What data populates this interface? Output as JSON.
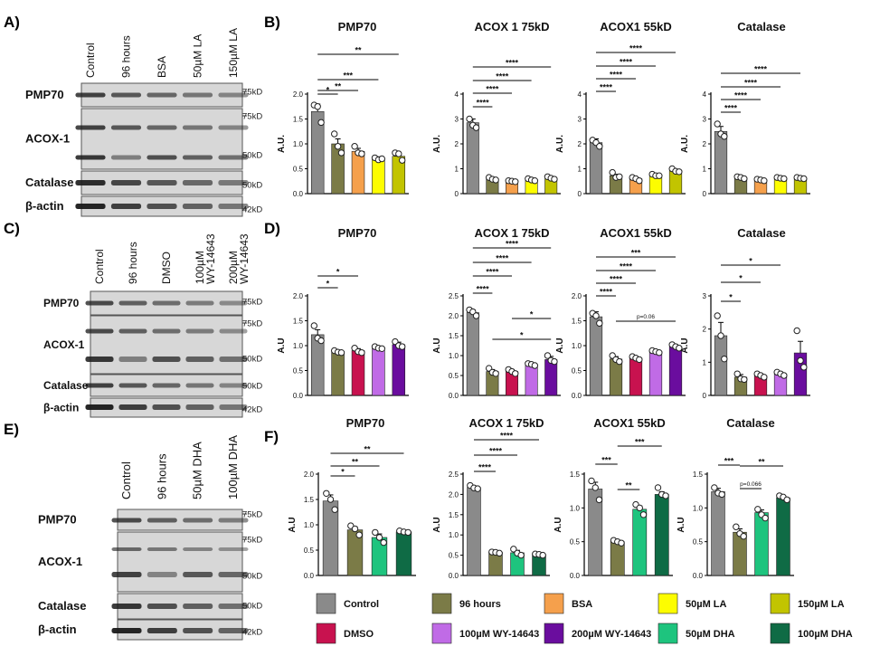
{
  "panel_letters": {
    "a": "A)",
    "b": "B)",
    "c": "C)",
    "d": "D)",
    "e": "E)",
    "f": "F)"
  },
  "colors": {
    "Control": "#8a8a8a",
    "96 hours": "#7b7b47",
    "BSA": "#f5a04c",
    "50µM LA": "#fdfd00",
    "150µM LA": "#c2c400",
    "DMSO": "#c8124f",
    "100µM WY-14643": "#c06be6",
    "200µM WY-14643": "#6a0d9e",
    "50µM DHA": "#1ec47e",
    "100µM DHA": "#0f6b45"
  },
  "blots": [
    {
      "lanes": [
        "Control",
        "96 hours",
        "BSA",
        "50µM LA",
        "150µM LA"
      ],
      "rows": [
        {
          "name": "PMP70",
          "markers": [
            "75kD"
          ]
        },
        {
          "name": "ACOX-1",
          "markers": [
            "75kD",
            "50kD"
          ]
        },
        {
          "name": "Catalase",
          "markers": [
            "50kD"
          ]
        },
        {
          "name": "β-actin",
          "markers": [
            "42kD"
          ]
        }
      ]
    },
    {
      "lanes": [
        "Control",
        "96 hours",
        "DMSO",
        "100µM WY-14643",
        "200µM WY-14643"
      ],
      "rows": [
        {
          "name": "PMP70",
          "markers": [
            "75kD"
          ]
        },
        {
          "name": "ACOX-1",
          "markers": [
            "75kD",
            "50kD"
          ]
        },
        {
          "name": "Catalase",
          "markers": [
            "50kD"
          ]
        },
        {
          "name": "β-actin",
          "markers": [
            "42kD"
          ]
        }
      ]
    },
    {
      "lanes": [
        "Control",
        "96 hours",
        "50µM DHA",
        "100µM DHA"
      ],
      "rows": [
        {
          "name": "PMP70",
          "markers": [
            "75kD"
          ]
        },
        {
          "name": "ACOX-1",
          "markers": [
            "75kD",
            "50kD"
          ]
        },
        {
          "name": "Catalase",
          "markers": [
            "50kD"
          ]
        },
        {
          "name": "β-actin",
          "markers": [
            "42kD"
          ]
        }
      ]
    }
  ],
  "chart_data": [
    {
      "panel": "B",
      "type": "bar",
      "title": "PMP70",
      "ylabel": "A.U.",
      "ylim": [
        0,
        2.0
      ],
      "yticks": [
        "0.0",
        "0.5",
        "1.0",
        "1.5",
        "2.0"
      ],
      "categories": [
        "Control",
        "96 hours",
        "BSA",
        "50µM LA",
        "150µM LA"
      ],
      "values": [
        1.65,
        1.0,
        0.85,
        0.7,
        0.75
      ],
      "errors": [
        0.15,
        0.1,
        0.06,
        0.04,
        0.06
      ],
      "points": [
        [
          1.78,
          1.75,
          1.43
        ],
        [
          1.2,
          0.95,
          0.82
        ],
        [
          0.95,
          0.82,
          0.8
        ],
        [
          0.72,
          0.68,
          0.7
        ],
        [
          0.82,
          0.8,
          0.67
        ]
      ],
      "sig": [
        {
          "from": 0,
          "to": 1,
          "label": "*"
        },
        {
          "from": 0,
          "to": 2,
          "label": "**"
        },
        {
          "from": 0,
          "to": 3,
          "label": "***"
        },
        {
          "from": 0,
          "to": 4,
          "label": "**"
        }
      ]
    },
    {
      "panel": "B",
      "type": "bar",
      "title": "ACOX 1 75kD",
      "ylabel": "A.U.",
      "ylim": [
        0,
        4
      ],
      "yticks": [
        "0",
        "1",
        "2",
        "3",
        "4"
      ],
      "categories": [
        "Control",
        "96 hours",
        "BSA",
        "50µM LA",
        "150µM LA"
      ],
      "values": [
        2.85,
        0.6,
        0.5,
        0.55,
        0.62
      ],
      "errors": [
        0.15,
        0.05,
        0.03,
        0.04,
        0.04
      ],
      "points": [
        [
          3.0,
          2.75,
          2.65
        ],
        [
          0.65,
          0.58,
          0.55
        ],
        [
          0.52,
          0.5,
          0.48
        ],
        [
          0.6,
          0.55,
          0.52
        ],
        [
          0.68,
          0.62,
          0.58
        ]
      ],
      "sig": [
        {
          "from": 0,
          "to": 1,
          "label": "****"
        },
        {
          "from": 0,
          "to": 2,
          "label": "****"
        },
        {
          "from": 0,
          "to": 3,
          "label": "****"
        },
        {
          "from": 0,
          "to": 4,
          "label": "****"
        }
      ]
    },
    {
      "panel": "B",
      "type": "bar",
      "title": "ACOX1 55kD",
      "ylabel": "A.U.",
      "ylim": [
        0,
        4
      ],
      "yticks": [
        "0",
        "1",
        "2",
        "3",
        "4"
      ],
      "categories": [
        "Control",
        "96 hours",
        "BSA",
        "50µM LA",
        "150µM LA"
      ],
      "values": [
        2.05,
        0.72,
        0.6,
        0.75,
        0.92
      ],
      "errors": [
        0.15,
        0.06,
        0.06,
        0.04,
        0.06
      ],
      "points": [
        [
          2.15,
          2.05,
          1.9
        ],
        [
          0.85,
          0.65,
          0.68
        ],
        [
          0.65,
          0.6,
          0.52
        ],
        [
          0.78,
          0.72,
          0.72
        ],
        [
          1.0,
          0.9,
          0.88
        ]
      ],
      "sig": [
        {
          "from": 0,
          "to": 1,
          "label": "****"
        },
        {
          "from": 0,
          "to": 2,
          "label": "****"
        },
        {
          "from": 0,
          "to": 3,
          "label": "****"
        },
        {
          "from": 0,
          "to": 4,
          "label": "****"
        }
      ]
    },
    {
      "panel": "B",
      "type": "bar",
      "title": "Catalase",
      "ylabel": "A.U.",
      "ylim": [
        0,
        4
      ],
      "yticks": [
        "0",
        "1",
        "2",
        "3",
        "4"
      ],
      "categories": [
        "Control",
        "96 hours",
        "BSA",
        "50µM LA",
        "150µM LA"
      ],
      "values": [
        2.5,
        0.65,
        0.55,
        0.62,
        0.62
      ],
      "errors": [
        0.2,
        0.04,
        0.03,
        0.04,
        0.04
      ],
      "points": [
        [
          2.8,
          2.4,
          2.3
        ],
        [
          0.68,
          0.65,
          0.6
        ],
        [
          0.58,
          0.55,
          0.52
        ],
        [
          0.65,
          0.62,
          0.6
        ],
        [
          0.65,
          0.62,
          0.6
        ]
      ],
      "sig": [
        {
          "from": 0,
          "to": 1,
          "label": "****"
        },
        {
          "from": 0,
          "to": 2,
          "label": "****"
        },
        {
          "from": 0,
          "to": 3,
          "label": "****"
        },
        {
          "from": 0,
          "to": 4,
          "label": "****"
        }
      ]
    },
    {
      "panel": "D",
      "type": "bar",
      "title": "PMP70",
      "ylabel": "A.U",
      "ylim": [
        0,
        2.0
      ],
      "yticks": [
        "0.0",
        "0.5",
        "1.0",
        "1.5",
        "2.0"
      ],
      "categories": [
        "Control",
        "96 hours",
        "DMSO",
        "100µM WY-14643",
        "200µM WY-14643"
      ],
      "values": [
        1.22,
        0.88,
        0.9,
        0.96,
        1.02
      ],
      "errors": [
        0.1,
        0.03,
        0.04,
        0.03,
        0.05
      ],
      "points": [
        [
          1.4,
          1.15,
          1.1
        ],
        [
          0.9,
          0.87,
          0.86
        ],
        [
          0.95,
          0.88,
          0.86
        ],
        [
          0.98,
          0.95,
          0.94
        ],
        [
          1.08,
          1.0,
          0.98
        ]
      ],
      "sig": [
        {
          "from": 0,
          "to": 1,
          "label": "*"
        },
        {
          "from": 0,
          "to": 2,
          "label": "*"
        }
      ]
    },
    {
      "panel": "D",
      "type": "bar",
      "title": "ACOX 1 75kD",
      "ylabel": "A.U",
      "ylim": [
        0,
        2.5
      ],
      "yticks": [
        "0.0",
        "0.5",
        "1.0",
        "1.5",
        "2.0",
        "2.5"
      ],
      "categories": [
        "Control",
        "96 hours",
        "DMSO",
        "100µM WY-14643",
        "200µM WY-14643"
      ],
      "values": [
        2.08,
        0.6,
        0.6,
        0.78,
        0.9
      ],
      "errors": [
        0.07,
        0.05,
        0.05,
        0.04,
        0.08
      ],
      "points": [
        [
          2.15,
          2.1,
          2.0
        ],
        [
          0.68,
          0.58,
          0.55
        ],
        [
          0.65,
          0.6,
          0.55
        ],
        [
          0.8,
          0.78,
          0.75
        ],
        [
          1.0,
          0.88,
          0.85
        ]
      ],
      "sig": [
        {
          "from": 0,
          "to": 1,
          "label": "****"
        },
        {
          "from": 0,
          "to": 2,
          "label": "****"
        },
        {
          "from": 0,
          "to": 3,
          "label": "****"
        },
        {
          "from": 0,
          "to": 4,
          "label": "****"
        },
        {
          "from": 1,
          "to": 4,
          "label": "*"
        },
        {
          "from": 2,
          "to": 4,
          "label": "*"
        }
      ]
    },
    {
      "panel": "D",
      "type": "bar",
      "title": "ACOX1 55kD",
      "ylabel": "A.U",
      "ylim": [
        0,
        2.0
      ],
      "yticks": [
        "0.0",
        "0.5",
        "1.0",
        "1.5",
        "2.0"
      ],
      "categories": [
        "Control",
        "96 hours",
        "DMSO",
        "100µM WY-14643",
        "200µM WY-14643"
      ],
      "values": [
        1.58,
        0.73,
        0.75,
        0.88,
        0.98
      ],
      "errors": [
        0.1,
        0.05,
        0.03,
        0.03,
        0.04
      ],
      "points": [
        [
          1.65,
          1.6,
          1.45
        ],
        [
          0.8,
          0.72,
          0.68
        ],
        [
          0.78,
          0.75,
          0.72
        ],
        [
          0.9,
          0.88,
          0.86
        ],
        [
          1.02,
          0.98,
          0.95
        ]
      ],
      "sig": [
        {
          "from": 0,
          "to": 1,
          "label": "****"
        },
        {
          "from": 0,
          "to": 2,
          "label": "****"
        },
        {
          "from": 0,
          "to": 3,
          "label": "****"
        },
        {
          "from": 0,
          "to": 4,
          "label": "***"
        },
        {
          "from": 1,
          "to": 4,
          "label": "p=0.06"
        }
      ]
    },
    {
      "panel": "D",
      "type": "bar",
      "title": "Catalase",
      "ylabel": "A.U",
      "ylim": [
        0,
        3
      ],
      "yticks": [
        "0",
        "1",
        "2",
        "3"
      ],
      "categories": [
        "Control",
        "96 hours",
        "DMSO",
        "100µM WY-14643",
        "200µM WY-14643"
      ],
      "values": [
        1.8,
        0.55,
        0.6,
        0.65,
        1.28
      ],
      "errors": [
        0.4,
        0.08,
        0.05,
        0.05,
        0.35
      ],
      "points": [
        [
          2.4,
          1.8,
          1.1
        ],
        [
          0.65,
          0.5,
          0.48
        ],
        [
          0.65,
          0.6,
          0.55
        ],
        [
          0.7,
          0.65,
          0.6
        ],
        [
          1.95,
          1.05,
          0.85
        ]
      ],
      "sig": [
        {
          "from": 0,
          "to": 1,
          "label": "*"
        },
        {
          "from": 0,
          "to": 2,
          "label": "*"
        },
        {
          "from": 0,
          "to": 3,
          "label": "*"
        }
      ]
    },
    {
      "panel": "F",
      "type": "bar",
      "title": "PMP70",
      "ylabel": "A.U",
      "ylim": [
        0,
        2.0
      ],
      "yticks": [
        "0.0",
        "0.5",
        "1.0",
        "1.5",
        "2.0"
      ],
      "categories": [
        "Control",
        "96 hours",
        "50µM DHA",
        "100µM DHA"
      ],
      "values": [
        1.47,
        0.9,
        0.75,
        0.86
      ],
      "errors": [
        0.12,
        0.06,
        0.07,
        0.02
      ],
      "points": [
        [
          1.62,
          1.5,
          1.3
        ],
        [
          0.98,
          0.92,
          0.8
        ],
        [
          0.85,
          0.75,
          0.65
        ],
        [
          0.88,
          0.86,
          0.85
        ]
      ],
      "sig": [
        {
          "from": 0,
          "to": 1,
          "label": "*"
        },
        {
          "from": 0,
          "to": 2,
          "label": "**"
        },
        {
          "from": 0,
          "to": 3,
          "label": "**"
        }
      ]
    },
    {
      "panel": "F",
      "type": "bar",
      "title": "ACOX 1 75kD",
      "ylabel": "A.U",
      "ylim": [
        0,
        2.5
      ],
      "yticks": [
        "0.0",
        "0.5",
        "1.0",
        "1.5",
        "2.0",
        "2.5"
      ],
      "categories": [
        "Control",
        "96 hours",
        "50µM DHA",
        "100µM DHA"
      ],
      "values": [
        2.17,
        0.57,
        0.56,
        0.52
      ],
      "errors": [
        0.04,
        0.02,
        0.06,
        0.02
      ],
      "points": [
        [
          2.22,
          2.16,
          2.14
        ],
        [
          0.58,
          0.57,
          0.55
        ],
        [
          0.65,
          0.55,
          0.5
        ],
        [
          0.53,
          0.52,
          0.5
        ]
      ],
      "sig": [
        {
          "from": 0,
          "to": 1,
          "label": "****"
        },
        {
          "from": 0,
          "to": 2,
          "label": "****"
        },
        {
          "from": 0,
          "to": 3,
          "label": "****"
        }
      ]
    },
    {
      "panel": "F",
      "type": "bar",
      "title": "ACOX1 55kD",
      "ylabel": "A.U",
      "ylim": [
        0,
        1.5
      ],
      "yticks": [
        "0.0",
        "0.5",
        "1.0",
        "1.5"
      ],
      "categories": [
        "Control",
        "96 hours",
        "50µM DHA",
        "100µM DHA"
      ],
      "values": [
        1.28,
        0.5,
        0.98,
        1.2
      ],
      "errors": [
        0.1,
        0.02,
        0.05,
        0.04
      ],
      "points": [
        [
          1.4,
          1.3,
          1.12
        ],
        [
          0.52,
          0.5,
          0.48
        ],
        [
          1.05,
          1.0,
          0.9
        ],
        [
          1.3,
          1.2,
          1.18
        ]
      ],
      "sig": [
        {
          "from": 0,
          "to": 1,
          "label": "***"
        },
        {
          "from": 1,
          "to": 2,
          "label": "**"
        },
        {
          "from": 1,
          "to": 3,
          "label": "***"
        }
      ]
    },
    {
      "panel": "F",
      "type": "bar",
      "title": "Catalase",
      "ylabel": "A.U",
      "ylim": [
        0,
        1.5
      ],
      "yticks": [
        "0.0",
        "0.5",
        "1.0",
        "1.5"
      ],
      "categories": [
        "Control",
        "96 hours",
        "50µM DHA",
        "100µM DHA"
      ],
      "values": [
        1.24,
        0.64,
        0.93,
        1.15
      ],
      "errors": [
        0.05,
        0.05,
        0.04,
        0.03
      ],
      "points": [
        [
          1.3,
          1.22,
          1.2
        ],
        [
          0.72,
          0.62,
          0.58
        ],
        [
          0.98,
          0.9,
          0.85
        ],
        [
          1.18,
          1.16,
          1.12
        ]
      ],
      "sig": [
        {
          "from": 0,
          "to": 1,
          "label": "***"
        },
        {
          "from": 1,
          "to": 2,
          "label": "p=0.066"
        },
        {
          "from": 1,
          "to": 3,
          "label": "**"
        }
      ]
    }
  ],
  "legend": [
    "Control",
    "96 hours",
    "BSA",
    "50µM LA",
    "150µM LA",
    "DMSO",
    "100µM WY-14643",
    "200µM WY-14643",
    "50µM DHA",
    "100µM DHA"
  ]
}
